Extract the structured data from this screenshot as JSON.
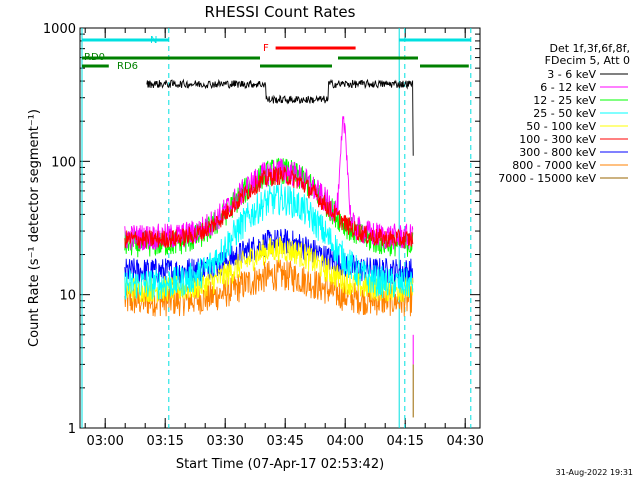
{
  "chart_data": {
    "type": "line",
    "title": "RHESSI Count Rates",
    "xlabel": "Start Time (07-Apr-17 02:53:42)",
    "ylabel": "Count Rate (s⁻¹ detector segment⁻¹)",
    "yscale": "log",
    "ylim": [
      1,
      1000
    ],
    "xlim_minutes": [
      0,
      100
    ],
    "x_tick_labels": [
      "03:00",
      "03:15",
      "03:30",
      "03:45",
      "04:00",
      "04:15",
      "04:30"
    ],
    "x_tick_minutes": [
      6.3,
      21.3,
      36.3,
      51.3,
      66.3,
      81.3,
      96.3
    ],
    "y_tick_labels": [
      "1",
      "10",
      "100",
      "1000"
    ],
    "y_tick_values": [
      1,
      10,
      100,
      1000
    ],
    "legend_header": [
      "Det 1f,3f,6f,8f,",
      "FDecim 5, Att 0"
    ],
    "series": [
      {
        "name": "3 - 6 keV",
        "color": "#000000",
        "baseline": 380,
        "peak": 400,
        "noise": 0.03
      },
      {
        "name": "6 - 12 keV",
        "color": "#ff00ff",
        "baseline": 27,
        "peak": 85,
        "noise": 0.1
      },
      {
        "name": "12 - 25 keV",
        "color": "#00ff00",
        "baseline": 24,
        "peak": 85,
        "noise": 0.1
      },
      {
        "name": "25 - 50 keV",
        "color": "#00ffff",
        "baseline": 12,
        "peak": 52,
        "noise": 0.12
      },
      {
        "name": "50 - 100 keV",
        "color": "#ffff00",
        "baseline": 11,
        "peak": 22,
        "noise": 0.1
      },
      {
        "name": "100 - 300 keV",
        "color": "#ff0000",
        "baseline": 26,
        "peak": 78,
        "noise": 0.07
      },
      {
        "name": "300 - 800 keV",
        "color": "#0000ff",
        "baseline": 15,
        "peak": 25,
        "noise": 0.1
      },
      {
        "name": "800 - 7000 keV",
        "color": "#ff8000",
        "baseline": 9,
        "peak": 14,
        "noise": 0.12
      },
      {
        "name": "7000 - 15000 keV",
        "color": "#996600",
        "baseline": 1.2,
        "peak": 1.2,
        "noise": 0
      }
    ],
    "series_start_min": 11.2,
    "series_end_min": 83.3,
    "black_start_min": 16.7,
    "dip_minutes": [
      46.5,
      62.0
    ],
    "dip_value": 290,
    "magenta_spike": {
      "minute": 66,
      "value": 180
    },
    "dashed_verticals_min": [
      22.2,
      81.2,
      97.7
    ],
    "solid_verticals_min": [
      0.5,
      79.8
    ],
    "states": [
      {
        "label": "N",
        "color": "#00e0e0",
        "segments": [
          [
            0.5,
            22.2
          ],
          [
            79.8,
            97.7
          ]
        ]
      },
      {
        "label": "F",
        "color": "#ff0000",
        "segments": [
          [
            48.9,
            68.9
          ]
        ]
      },
      {
        "label": "RD0",
        "color": "#008000",
        "segments": [
          [
            0.5,
            45.0
          ],
          [
            64.5,
            84.5
          ]
        ]
      },
      {
        "label": "RD6",
        "color": "#008000",
        "segments": [
          [
            0.5,
            7.2
          ],
          [
            45.0,
            63.0
          ],
          [
            85.0,
            97.2
          ]
        ]
      }
    ],
    "footer_date": "31-Aug-2022 19:31"
  }
}
